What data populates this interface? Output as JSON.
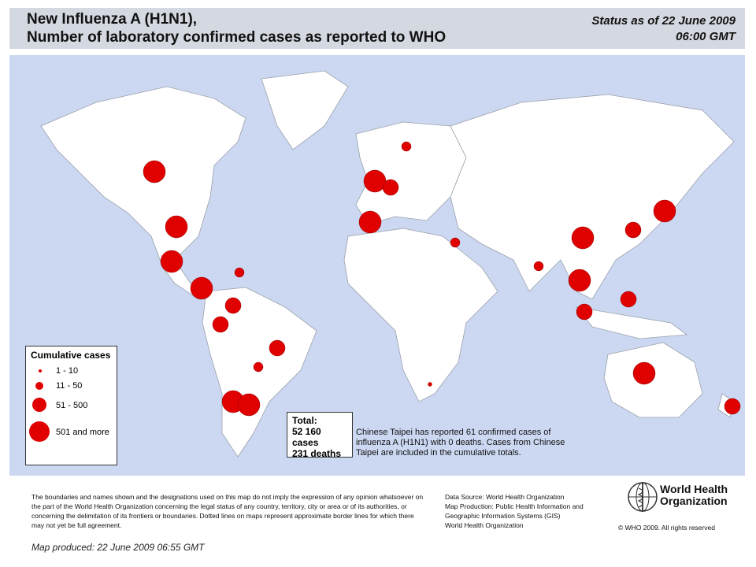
{
  "header": {
    "title_line1": "New Influenza A (H1N1),",
    "title_line2": "Number of  laboratory confirmed cases as reported to WHO",
    "status_line1": "Status as of 22 June 2009",
    "status_line2": "06:00 GMT"
  },
  "legend": {
    "title": "Cumulative cases",
    "items": [
      {
        "label": "1 - 10",
        "size_class": "tiny"
      },
      {
        "label": "11 - 50",
        "size_class": "small"
      },
      {
        "label": "51 - 500",
        "size_class": "medium"
      },
      {
        "label": "501 and more",
        "size_class": "large"
      }
    ]
  },
  "totals": {
    "label": "Total:",
    "cases": "52 160 cases",
    "deaths": "231 deaths"
  },
  "note": "Chinese Taipei has reported 61 confirmed cases of influenza A (H1N1) with 0 deaths. Cases from Chinese Taipei are included in the cumulative totals.",
  "disclaimer": "The boundaries and names shown and the designations used on this map do not imply the expression of any opinion whatsoever on the part of the World Health Organization concerning the legal status of any country, territory, city or area or of its authorities, or concerning the delimitation of its frontiers or boundaries.  Dotted lines on maps represent approximate border lines for which there may not yet be full agreement.",
  "source": {
    "line1": "Data Source: World Health Organization",
    "line2": "Map Production: Public Health Information and Geographic Information Systems (GIS)",
    "line3": "World Health Organization"
  },
  "who": {
    "name": "World Health\nOrganization",
    "copyright": "© WHO 2009. All rights reserved"
  },
  "produced": "Map produced: 22 June 2009 06:55 GMT",
  "colors": {
    "marker": "#e00000",
    "ocean": "#ccd8f2",
    "land": "#ffffff",
    "header_band": "#d4d8e0"
  },
  "markers": [
    {
      "region": "Canada",
      "size_class": "large"
    },
    {
      "region": "United States",
      "size_class": "large"
    },
    {
      "region": "Mexico",
      "size_class": "large"
    },
    {
      "region": "Central America",
      "size_class": "large"
    },
    {
      "region": "Caribbean",
      "size_class": "small"
    },
    {
      "region": "Colombia/Venezuela",
      "size_class": "medium"
    },
    {
      "region": "Ecuador/Peru",
      "size_class": "medium"
    },
    {
      "region": "Brazil",
      "size_class": "medium"
    },
    {
      "region": "Bolivia/Paraguay",
      "size_class": "small"
    },
    {
      "region": "Chile",
      "size_class": "large"
    },
    {
      "region": "Argentina",
      "size_class": "large"
    },
    {
      "region": "United Kingdom",
      "size_class": "large"
    },
    {
      "region": "Spain",
      "size_class": "large"
    },
    {
      "region": "Germany/Central Europe",
      "size_class": "medium"
    },
    {
      "region": "Scandinavia",
      "size_class": "small"
    },
    {
      "region": "Middle East",
      "size_class": "small"
    },
    {
      "region": "India",
      "size_class": "small"
    },
    {
      "region": "China",
      "size_class": "large"
    },
    {
      "region": "Japan",
      "size_class": "large"
    },
    {
      "region": "Korea",
      "size_class": "medium"
    },
    {
      "region": "Thailand/Viet Nam",
      "size_class": "large"
    },
    {
      "region": "Malaysia/Singapore",
      "size_class": "medium"
    },
    {
      "region": "Philippines",
      "size_class": "medium"
    },
    {
      "region": "Australia",
      "size_class": "large"
    },
    {
      "region": "New Zealand",
      "size_class": "medium"
    },
    {
      "region": "South Africa",
      "size_class": "tiny"
    }
  ]
}
